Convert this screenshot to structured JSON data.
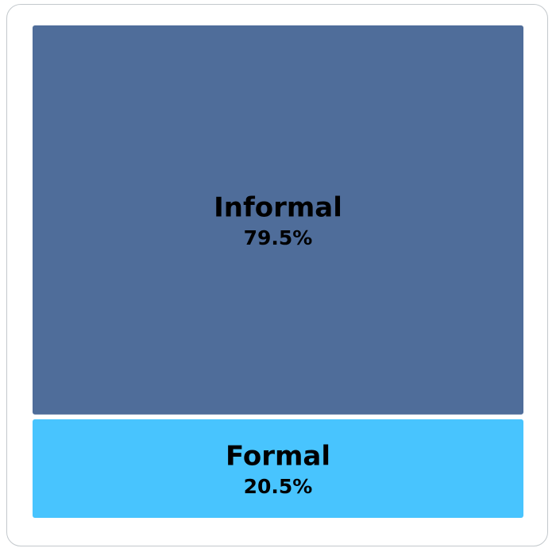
{
  "chart_data": {
    "type": "treemap",
    "categories": [
      "Informal",
      "Formal"
    ],
    "values": [
      79.5,
      20.5
    ],
    "value_labels": [
      "79.5%",
      "20.5%"
    ],
    "colors": [
      "#4f6d9a",
      "#48c4fe"
    ]
  }
}
